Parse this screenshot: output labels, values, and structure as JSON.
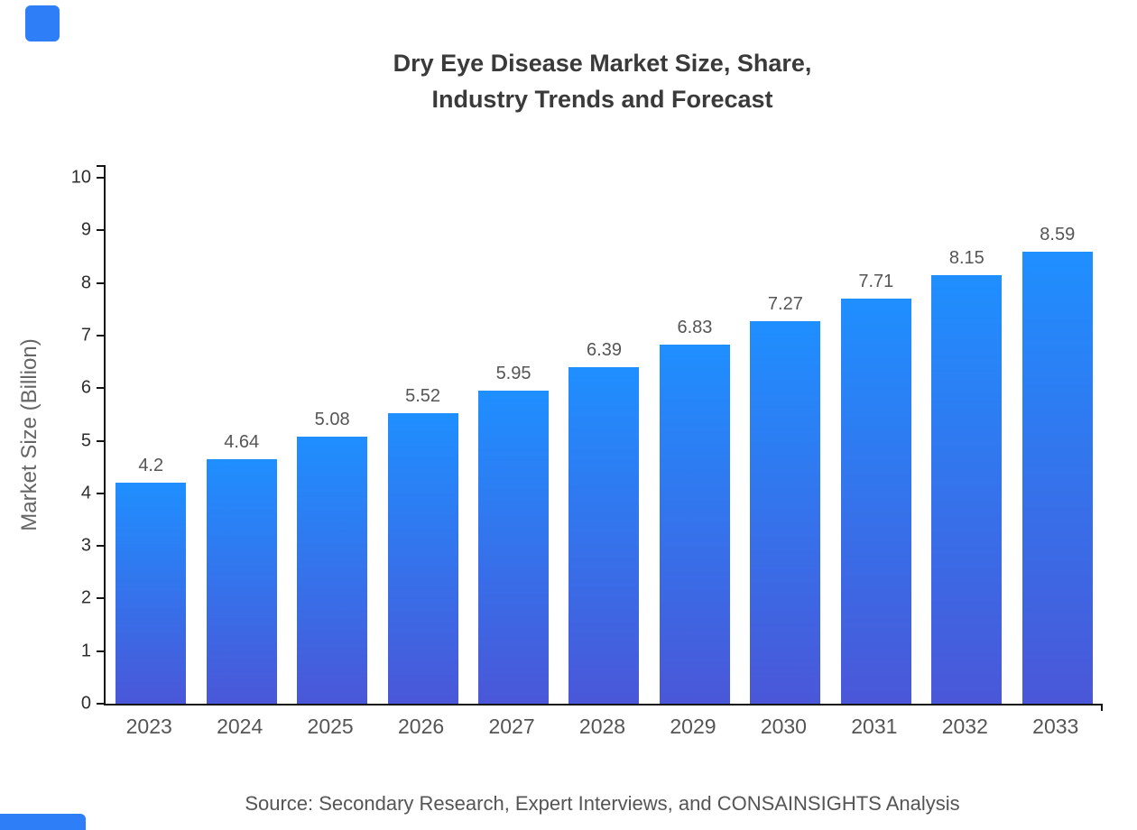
{
  "page": {
    "background": "#ffffff",
    "accent_blue": "#2e7ef7"
  },
  "header": {
    "title": "Dry Eye Disease Market Size, Share,\nIndustry Trends and Forecast"
  },
  "footer": {
    "source": "Source: Secondary Research, Expert Interviews, and CONSAINSIGHTS Analysis"
  },
  "chart_data": {
    "type": "bar",
    "title": "Dry Eye Disease Market Size, Share, Industry Trends and Forecast",
    "xlabel": "",
    "ylabel": "Market Size (Billion)",
    "categories": [
      "2023",
      "2024",
      "2025",
      "2026",
      "2027",
      "2028",
      "2029",
      "2030",
      "2031",
      "2032",
      "2033"
    ],
    "values": [
      4.2,
      4.64,
      5.08,
      5.52,
      5.95,
      6.39,
      6.83,
      7.27,
      7.71,
      8.15,
      8.59
    ],
    "labels": [
      "4.2",
      "4.64",
      "5.08",
      "5.52",
      "5.95",
      "6.39",
      "6.83",
      "7.27",
      "7.71",
      "8.15",
      "8.59"
    ],
    "ylim": [
      0,
      10
    ],
    "yticks": [
      0,
      1,
      2,
      3,
      4,
      5,
      6,
      7,
      8,
      9,
      10
    ],
    "grid": false,
    "legend": false,
    "bar_gradient_top": "#1f8fff",
    "bar_gradient_bottom": "#4a57d8",
    "axis_color": "#151515"
  }
}
